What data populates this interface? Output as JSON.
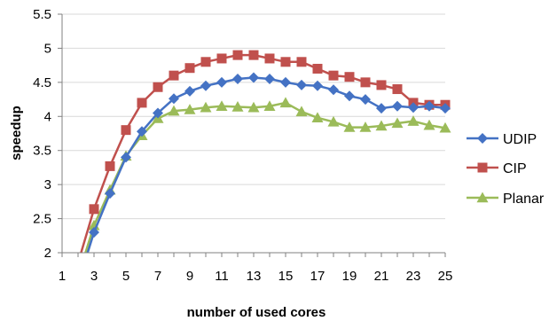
{
  "chart_data": {
    "type": "line",
    "xlabel": "number of used cores",
    "ylabel": "speedup",
    "xlim": [
      1,
      25
    ],
    "ylim": [
      2,
      5.5
    ],
    "x_ticks": [
      1,
      3,
      5,
      7,
      9,
      11,
      13,
      15,
      17,
      19,
      21,
      23,
      25
    ],
    "y_ticks": [
      "2",
      "2.5",
      "3",
      "3.5",
      "4",
      "4.5",
      "5",
      "5.5"
    ],
    "grid": "horizontal",
    "legend_position": "right",
    "x": [
      2,
      3,
      4,
      5,
      6,
      7,
      8,
      9,
      10,
      11,
      12,
      13,
      14,
      15,
      16,
      17,
      18,
      19,
      20,
      21,
      22,
      23,
      24,
      25
    ],
    "series": [
      {
        "name": "UDIP",
        "color": "#4472C4",
        "marker": "diamond",
        "values": [
          1.55,
          2.3,
          2.87,
          3.4,
          3.78,
          4.05,
          4.26,
          4.37,
          4.45,
          4.5,
          4.55,
          4.57,
          4.55,
          4.5,
          4.46,
          4.45,
          4.39,
          4.3,
          4.25,
          4.12,
          4.15,
          4.13,
          4.15,
          4.12
        ]
      },
      {
        "name": "CIP",
        "color": "#C0504D",
        "marker": "square",
        "values": [
          1.85,
          2.64,
          3.27,
          3.8,
          4.2,
          4.43,
          4.6,
          4.71,
          4.8,
          4.85,
          4.9,
          4.9,
          4.85,
          4.8,
          4.8,
          4.7,
          4.6,
          4.58,
          4.5,
          4.46,
          4.4,
          4.2,
          4.17,
          4.17
        ]
      },
      {
        "name": "Planar",
        "color": "#9BBB59",
        "marker": "triangle",
        "values": [
          1.65,
          2.4,
          2.92,
          3.42,
          3.72,
          3.97,
          4.08,
          4.1,
          4.13,
          4.15,
          4.14,
          4.13,
          4.15,
          4.2,
          4.07,
          3.98,
          3.92,
          3.84,
          3.84,
          3.86,
          3.9,
          3.93,
          3.87,
          3.83
        ]
      }
    ]
  }
}
